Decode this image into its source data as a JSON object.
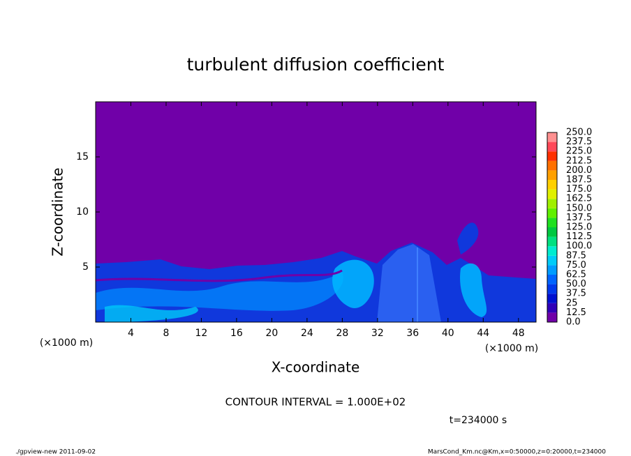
{
  "chart_data": {
    "type": "contour",
    "title": "turbulent diffusion coefficient",
    "xlabel": "X-coordinate",
    "ylabel": "Z-coordinate",
    "xunit": "(×1000 m)",
    "yunit": "(×1000 m)",
    "xlim": [
      0,
      50
    ],
    "xticks": [
      4,
      8,
      12,
      16,
      20,
      24,
      28,
      32,
      36,
      40,
      44,
      48
    ],
    "ylim": [
      0,
      20
    ],
    "yticks": [
      5,
      10,
      15
    ],
    "levels": [
      {
        "value": 0,
        "label": "0.0"
      },
      12.5,
      25,
      37.5,
      {
        "value": 50,
        "label": "50.0"
      },
      62.5,
      {
        "value": 75,
        "label": "75.0"
      },
      87.5,
      {
        "value": 100,
        "label": "100.0"
      },
      112.5,
      {
        "value": 125,
        "label": "125.0"
      },
      137.5,
      {
        "value": 150,
        "label": "150.0"
      },
      162.5,
      {
        "value": 175,
        "label": "175.0"
      },
      187.5,
      {
        "value": 200,
        "label": "200.0"
      },
      212.5,
      {
        "value": 225,
        "label": "225.0"
      },
      237.5,
      {
        "value": 250,
        "label": "250.0"
      }
    ],
    "colors": [
      "#7000a8",
      "#3000b8",
      "#0010d0",
      "#0038ec",
      "#0064ff",
      "#009cff",
      "#00ccf8",
      "#00ecd0",
      "#00e080",
      "#00c840",
      "#20e020",
      "#60f000",
      "#a0f000",
      "#e0f000",
      "#ffd000",
      "#ffa000",
      "#ff7000",
      "#ff3000",
      "#ff4858",
      "#ff9090"
    ],
    "contour_interval": "CONTOUR INTERVAL = 1.000E+02",
    "time_label": "t=234000 s",
    "footer_left": "./gpview-new  2011-09-02",
    "footer_right": "MarsCond_Km.nc@Km,x=0:50000,z=0:20000,t=234000"
  }
}
